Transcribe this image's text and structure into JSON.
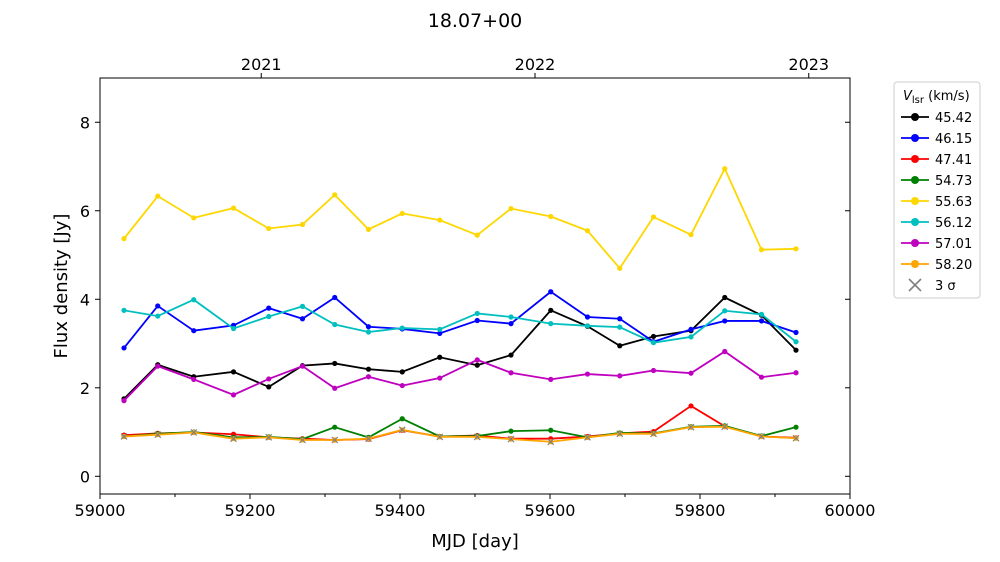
{
  "chart_data": {
    "type": "line",
    "title": "18.07+00",
    "xlabel": "MJD [day]",
    "ylabel": "Flux density [Jy]",
    "xlim": [
      59000,
      60000
    ],
    "ylim": [
      -0.4,
      9.0
    ],
    "xticks": [
      59000,
      59200,
      59400,
      59600,
      59800,
      60000
    ],
    "yticks": [
      0,
      2,
      4,
      6,
      8
    ],
    "top_axis": {
      "ticks": [
        {
          "label": "2021",
          "mjd": 59215
        },
        {
          "label": "2022",
          "mjd": 59580
        },
        {
          "label": "2023",
          "mjd": 59945
        }
      ]
    },
    "grid": false,
    "legend": {
      "title_main": "V",
      "title_sub": "lsr",
      "title_unit": " (km/s)",
      "placement": "right, outside plot",
      "noise_label": "3 σ"
    },
    "x": [
      59032,
      59077,
      59125,
      59178,
      59225,
      59270,
      59313,
      59358,
      59403,
      59453,
      59503,
      59548,
      59601,
      59650,
      59693,
      59738,
      59788,
      59833,
      59882,
      59928
    ],
    "series": [
      {
        "name": "45.42",
        "color": "#000000",
        "values": [
          1.75,
          2.52,
          2.25,
          2.36,
          2.02,
          2.5,
          2.55,
          2.42,
          2.36,
          2.69,
          2.51,
          2.74,
          3.75,
          3.39,
          2.95,
          3.16,
          3.29,
          4.04,
          3.64,
          2.85
        ]
      },
      {
        "name": "46.15",
        "color": "#0000ff",
        "values": [
          2.9,
          3.85,
          3.29,
          3.41,
          3.8,
          3.56,
          4.04,
          3.38,
          3.33,
          3.23,
          3.52,
          3.45,
          4.17,
          3.6,
          3.56,
          3.04,
          3.32,
          3.51,
          3.51,
          3.25
        ]
      },
      {
        "name": "47.41",
        "color": "#ff0000",
        "values": [
          0.93,
          0.97,
          0.99,
          0.95,
          0.88,
          0.85,
          0.82,
          0.84,
          1.04,
          0.9,
          0.92,
          0.85,
          0.85,
          0.9,
          0.97,
          1.01,
          1.59,
          1.13,
          0.9,
          0.87
        ]
      },
      {
        "name": "54.73",
        "color": "#008000",
        "values": [
          0.9,
          0.96,
          1.0,
          0.88,
          0.89,
          0.84,
          1.11,
          0.88,
          1.3,
          0.9,
          0.91,
          1.02,
          1.04,
          0.88,
          0.98,
          0.97,
          1.12,
          1.14,
          0.91,
          1.11
        ]
      },
      {
        "name": "55.63",
        "color": "#ffd700",
        "values": [
          5.37,
          6.33,
          5.84,
          6.06,
          5.6,
          5.69,
          6.36,
          5.58,
          5.94,
          5.79,
          5.45,
          6.05,
          5.87,
          5.55,
          4.7,
          5.86,
          5.46,
          6.95,
          5.12,
          5.14
        ]
      },
      {
        "name": "56.12",
        "color": "#00bfbf",
        "values": [
          3.75,
          3.62,
          3.99,
          3.34,
          3.61,
          3.84,
          3.43,
          3.26,
          3.35,
          3.32,
          3.68,
          3.6,
          3.45,
          3.4,
          3.37,
          3.02,
          3.15,
          3.74,
          3.66,
          3.04
        ]
      },
      {
        "name": "57.01",
        "color": "#bf00bf",
        "values": [
          1.71,
          2.49,
          2.19,
          1.84,
          2.2,
          2.49,
          1.99,
          2.25,
          2.05,
          2.22,
          2.63,
          2.34,
          2.19,
          2.31,
          2.27,
          2.39,
          2.33,
          2.82,
          2.24,
          2.34
        ]
      },
      {
        "name": "58.20",
        "color": "#ffa500",
        "values": [
          0.9,
          0.94,
          0.99,
          0.85,
          0.88,
          0.82,
          0.82,
          0.85,
          1.05,
          0.89,
          0.89,
          0.84,
          0.78,
          0.88,
          0.96,
          0.96,
          1.11,
          1.12,
          0.9,
          0.86
        ]
      }
    ],
    "noise_3sigma": [
      0.9,
      0.94,
      0.99,
      0.85,
      0.88,
      0.82,
      0.82,
      0.85,
      1.05,
      0.89,
      0.89,
      0.84,
      0.78,
      0.88,
      0.96,
      0.96,
      1.11,
      1.12,
      0.9,
      0.86
    ]
  }
}
